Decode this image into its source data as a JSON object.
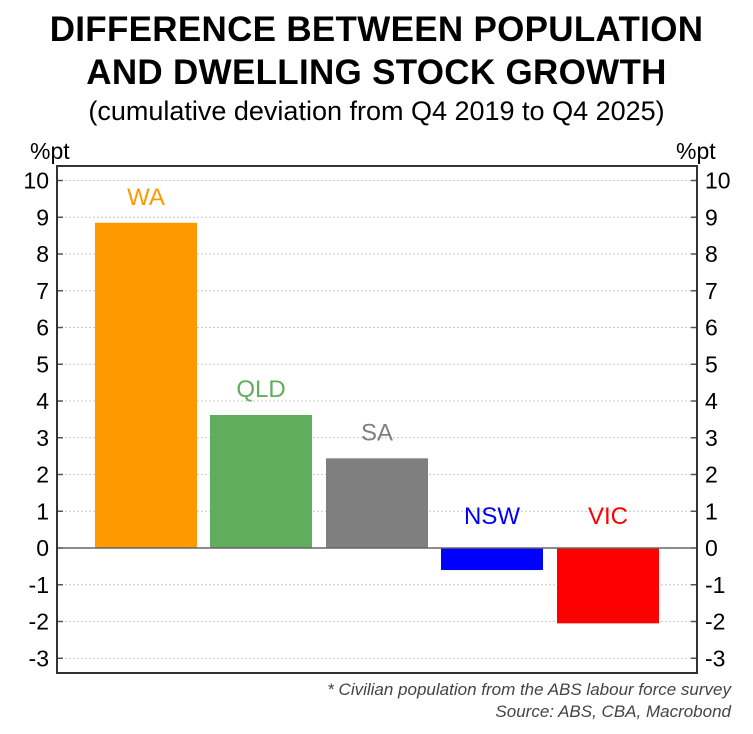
{
  "chart_data": {
    "type": "bar",
    "title": "DIFFERENCE BETWEEN POPULATION AND DWELLING STOCK GROWTH",
    "title_lines": [
      "DIFFERENCE BETWEEN POPULATION",
      "AND DWELLING STOCK GROWTH"
    ],
    "subtitle": "(cumulative deviation from Q4 2019 to Q4 2025)",
    "ylabel": "%pt",
    "ylabel_right": "%pt",
    "ylim": [
      -3,
      10
    ],
    "yticks": [
      10,
      9,
      8,
      7,
      6,
      5,
      4,
      3,
      2,
      1,
      0,
      -1,
      -2,
      -3
    ],
    "grid": true,
    "categories": [
      "WA",
      "QLD",
      "SA",
      "NSW",
      "VIC"
    ],
    "values": [
      8.85,
      3.62,
      2.44,
      -0.6,
      -2.05
    ],
    "colors": [
      "#ff9900",
      "#60ad5e",
      "#7f7f7f",
      "#0000ff",
      "#ff0000"
    ],
    "footnotes": [
      "* Civilian population from the ABS labour force survey",
      "Source: ABS, CBA, Macrobond"
    ]
  }
}
